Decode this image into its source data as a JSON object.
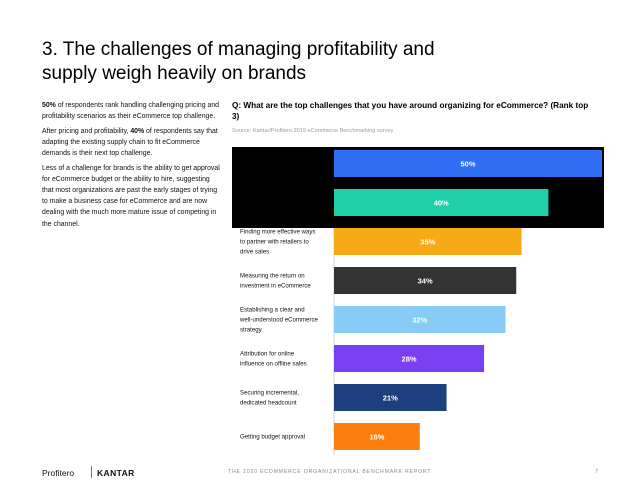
{
  "title": "3. The challenges of managing profitability and supply weigh heavily on brands",
  "body": {
    "p1_bold": "50%",
    "p1_text": " of respondents rank handling challenging pricing and profitability scenarios as their eCommerce top challenge.",
    "p2_pre": "After pricing and profitability, ",
    "p2_bold": "40%",
    "p2_text": " of respondents say that adapting the existing supply chain to fit eCommerce demands is their next top challenge.",
    "p3": "Less of a challenge for brands is the ability to get approval for eCommerce budget or the ability to hire, suggesting that most organizations are past the early stages of trying to make a business case for eCommerce and are now dealing with the much more mature issue of competing in the channel."
  },
  "question": "Q: What are the top challenges that you have around organizing for eCommerce? (Rank top 3)",
  "source": "Source: Kantar/Profitero 2019 eCommerce Benchmarking survey",
  "chart_data": {
    "type": "bar",
    "orientation": "horizontal",
    "categories": [
      "",
      "",
      "Finding more effective ways to partner with retailers to drive sales",
      "Measuring the return on investment in eCommerce",
      "Establishing a clear and well-understood eCommerce strategy",
      "Attribution for online influence on offline sales",
      "Securing incremental, dedicated headcount",
      "Getting budget approval"
    ],
    "category_lines": [
      [],
      [],
      [
        "Finding more effective ways",
        "to partner with retailers to",
        "drive sales"
      ],
      [
        "Measuring the return on",
        "investment in eCommerce"
      ],
      [
        "Establishing a clear and",
        "well-understood eCommerce",
        "strategy"
      ],
      [
        "Attribution for online",
        "influence on offline sales"
      ],
      [
        "Securing incremental,",
        "dedicated headcount"
      ],
      [
        "Getting budget approval"
      ]
    ],
    "values": [
      50,
      40,
      35,
      34,
      32,
      28,
      21,
      16
    ],
    "data_labels": [
      "50%",
      "40%",
      "35%",
      "34%",
      "32%",
      "28%",
      "21%",
      "16%"
    ],
    "colors": [
      "#2f6df3",
      "#1fcfa8",
      "#f6ab16",
      "#333333",
      "#86ccf7",
      "#7a3ff0",
      "#1c3f7e",
      "#fb7f0f"
    ],
    "label_colors": [
      "#ffffff",
      "#ffffff",
      "#ffffff",
      "#ffffff",
      "#ffffff",
      "#ffffff",
      "#ffffff",
      "#ffffff"
    ],
    "xlim": [
      0,
      50
    ],
    "redacted_rows": [
      0,
      1
    ],
    "redaction_color": "#000000"
  },
  "footer": {
    "logo_left": "Profitero",
    "logo_right": "KANTAR",
    "center": "THE 2020 ECOMMERCE ORGANIZATIONAL BENCHMARK REPORT",
    "page": "7"
  }
}
